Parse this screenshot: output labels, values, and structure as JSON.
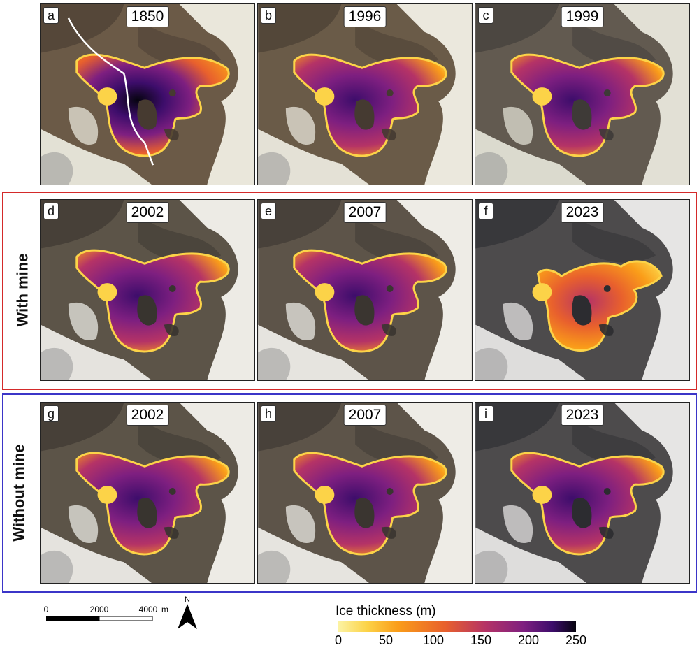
{
  "panels": [
    {
      "letter": "a",
      "year": "1850"
    },
    {
      "letter": "b",
      "year": "1996"
    },
    {
      "letter": "c",
      "year": "1999"
    },
    {
      "letter": "d",
      "year": "2002"
    },
    {
      "letter": "e",
      "year": "2007"
    },
    {
      "letter": "f",
      "year": "2023"
    },
    {
      "letter": "g",
      "year": "2002"
    },
    {
      "letter": "h",
      "year": "2007"
    },
    {
      "letter": "i",
      "year": "2023"
    }
  ],
  "groups": {
    "with_mine": {
      "label": "With mine",
      "color": "#d42a2a"
    },
    "without_mine": {
      "label": "Without mine",
      "color": "#3b35c8"
    }
  },
  "scalebar": {
    "tick0": "0",
    "tick1": "2000",
    "tick2": "4000",
    "unit": "m",
    "north": "N"
  },
  "legend": {
    "title": "Ice thickness (m)",
    "ticks": [
      "0",
      "50",
      "100",
      "150",
      "200",
      "250"
    ],
    "colors": [
      "#fcf3a3",
      "#fcd348",
      "#fa9d19",
      "#e8602d",
      "#b53366",
      "#7e1f80",
      "#3d0d6b",
      "#06040f"
    ]
  }
}
